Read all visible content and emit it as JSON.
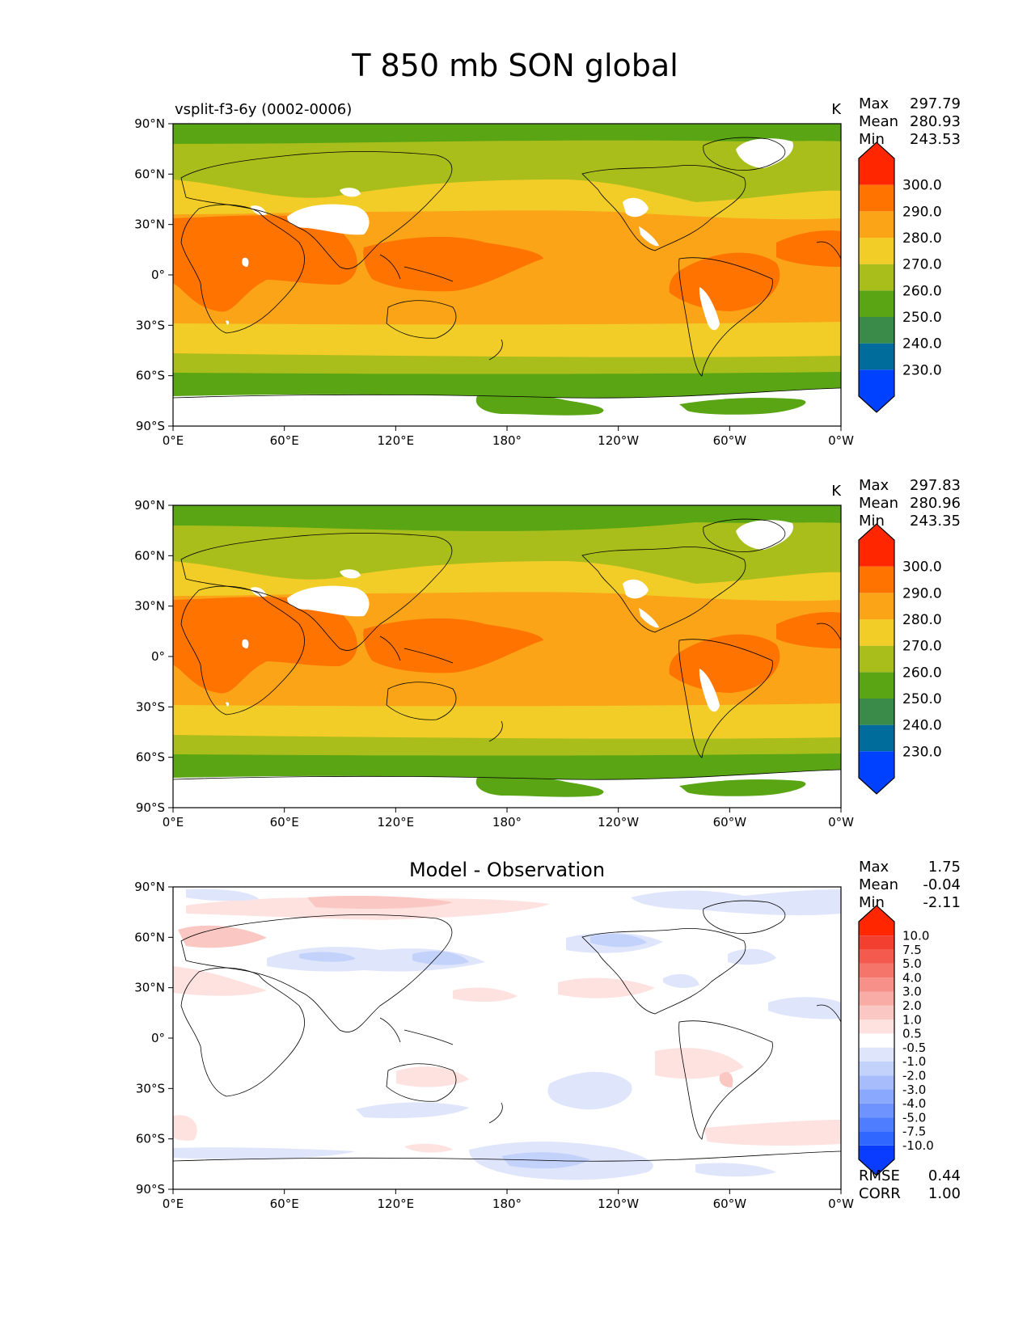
{
  "figure": {
    "title": "T 850 mb SON global"
  },
  "colors": {
    "abs_levels": [
      "#0040ff",
      "#006c9c",
      "#3a8a4a",
      "#5aa514",
      "#a9be1b",
      "#f2cd27",
      "#fba418",
      "#ff7300",
      "#ff2600"
    ],
    "diff_levels": [
      "#0a3cff",
      "#3067ff",
      "#4f7dff",
      "#6e93ff",
      "#8ba8ff",
      "#a7bdfb",
      "#c3d2fa",
      "#dfe6fc",
      "#ffffff",
      "#fde2e0",
      "#fbc7c2",
      "#f9aca5",
      "#f79088",
      "#f5756a",
      "#f45a4d",
      "#f33f30",
      "#ff2600"
    ]
  },
  "panels": [
    {
      "left_title": "vsplit-f3-6y (0002-0006)",
      "center_title": "",
      "units": "K",
      "stats": {
        "labels": [
          "Max",
          "Mean",
          "Min"
        ],
        "values": [
          "297.79",
          "280.93",
          "243.53"
        ]
      },
      "colorbar_ticks": [
        "300.0",
        "290.0",
        "280.0",
        "270.0",
        "260.0",
        "250.0",
        "240.0",
        "230.0"
      ],
      "footer": null
    },
    {
      "left_title": "",
      "center_title": "",
      "units": "K",
      "stats": {
        "labels": [
          "Max",
          "Mean",
          "Min"
        ],
        "values": [
          "297.83",
          "280.96",
          "243.35"
        ]
      },
      "colorbar_ticks": [
        "300.0",
        "290.0",
        "280.0",
        "270.0",
        "260.0",
        "250.0",
        "240.0",
        "230.0"
      ],
      "footer": null
    },
    {
      "left_title": "",
      "center_title": "Model - Observation",
      "units": "",
      "stats": {
        "labels": [
          "Max",
          "Mean",
          "Min"
        ],
        "values": [
          "1.75",
          "-0.04",
          "-2.11"
        ]
      },
      "colorbar_ticks": [
        "10.0",
        "7.5",
        "5.0",
        "4.0",
        "3.0",
        "2.0",
        "1.0",
        "0.5",
        "-0.5",
        "-1.0",
        "-2.0",
        "-3.0",
        "-4.0",
        "-5.0",
        "-7.5",
        "-10.0"
      ],
      "footer": {
        "labels": [
          "RMSE",
          "CORR"
        ],
        "values": [
          "0.44",
          "1.00"
        ]
      }
    }
  ],
  "axes": {
    "x_ticks": [
      "0°E",
      "60°E",
      "120°E",
      "180°",
      "120°W",
      "60°W",
      "0°W"
    ],
    "y_ticks": [
      "90°N",
      "60°N",
      "30°N",
      "0°",
      "30°S",
      "60°S",
      "90°S"
    ]
  }
}
